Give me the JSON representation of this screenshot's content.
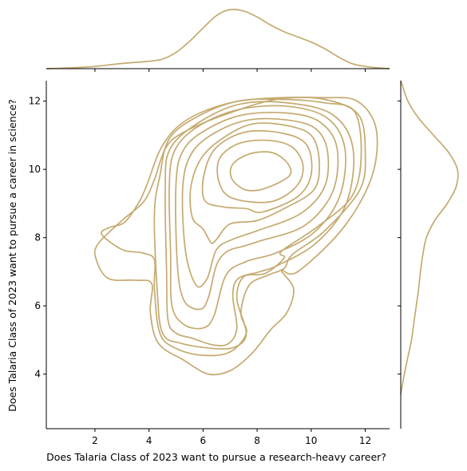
{
  "chart_data": {
    "type": "kde-joint",
    "color": "#c5aa6f",
    "xlabel": "Does Talaria Class of 2023 want to pursue a research-heavy career?",
    "ylabel": "Does Talaria Class of 2023 want to pursue a career in science?",
    "xlim": [
      0.2,
      12.9
    ],
    "ylim": [
      2.4,
      12.6
    ],
    "x_ticks": [
      2,
      4,
      6,
      8,
      10,
      12
    ],
    "y_ticks": [
      4,
      6,
      8,
      10,
      12
    ],
    "x_tick_labels": [
      "2",
      "4",
      "6",
      "8",
      "10",
      "12"
    ],
    "y_tick_labels": [
      "4",
      "6",
      "8",
      "10",
      "12"
    ],
    "contour_levels": 10,
    "contours": [
      [
        [
          8.1,
          9.4
        ],
        [
          8.9,
          9.65
        ],
        [
          9.25,
          9.9
        ],
        [
          9.05,
          10.25
        ],
        [
          8.5,
          10.5
        ],
        [
          7.7,
          10.45
        ],
        [
          7.1,
          10.15
        ],
        [
          7.05,
          9.75
        ],
        [
          7.5,
          9.42
        ]
      ],
      [
        [
          8.5,
          9.05
        ],
        [
          9.45,
          9.5
        ],
        [
          9.7,
          10.1
        ],
        [
          9.3,
          10.65
        ],
        [
          8.4,
          10.85
        ],
        [
          7.3,
          10.75
        ],
        [
          6.6,
          10.3
        ],
        [
          6.6,
          9.6
        ],
        [
          7.1,
          9.15
        ]
      ],
      [
        [
          8.2,
          8.75
        ],
        [
          9.5,
          9.2
        ],
        [
          10.0,
          9.85
        ],
        [
          9.85,
          10.7
        ],
        [
          9.0,
          11.05
        ],
        [
          7.6,
          11.1
        ],
        [
          6.5,
          10.65
        ],
        [
          6.05,
          9.9
        ],
        [
          6.05,
          9.1
        ],
        [
          6.75,
          8.9
        ],
        [
          7.6,
          8.85
        ]
      ],
      [
        [
          8.0,
          8.5
        ],
        [
          9.0,
          8.85
        ],
        [
          10.1,
          9.4
        ],
        [
          10.3,
          10.2
        ],
        [
          10.05,
          10.95
        ],
        [
          9.3,
          11.25
        ],
        [
          8.0,
          11.35
        ],
        [
          7.0,
          11.05
        ],
        [
          6.0,
          10.4
        ],
        [
          5.55,
          9.5
        ],
        [
          5.6,
          8.6
        ],
        [
          6.0,
          8.25
        ],
        [
          6.3,
          7.85
        ],
        [
          6.5,
          7.95
        ],
        [
          7.0,
          8.4
        ]
      ],
      [
        [
          8.0,
          8.2
        ],
        [
          9.6,
          8.7
        ],
        [
          10.5,
          9.5
        ],
        [
          10.6,
          10.55
        ],
        [
          10.15,
          11.2
        ],
        [
          9.1,
          11.45
        ],
        [
          7.7,
          11.45
        ],
        [
          6.5,
          11.1
        ],
        [
          5.6,
          10.5
        ],
        [
          5.25,
          9.5
        ],
        [
          5.35,
          7.6
        ],
        [
          5.75,
          6.6
        ],
        [
          6.15,
          6.8
        ],
        [
          6.5,
          7.65
        ],
        [
          7.1,
          7.95
        ]
      ],
      [
        [
          8.1,
          7.9
        ],
        [
          9.75,
          8.35
        ],
        [
          10.8,
          9.35
        ],
        [
          10.95,
          10.65
        ],
        [
          10.3,
          11.4
        ],
        [
          9.1,
          11.65
        ],
        [
          7.5,
          11.6
        ],
        [
          6.2,
          11.2
        ],
        [
          5.3,
          10.6
        ],
        [
          5.0,
          9.6
        ],
        [
          5.05,
          7.2
        ],
        [
          5.3,
          6.15
        ],
        [
          5.9,
          5.9
        ],
        [
          6.2,
          6.25
        ],
        [
          6.5,
          7.2
        ],
        [
          6.9,
          7.6
        ],
        [
          7.5,
          7.75
        ]
      ],
      [
        [
          8.7,
          7.55
        ],
        [
          10.1,
          8.15
        ],
        [
          11.05,
          9.2
        ],
        [
          11.25,
          10.6
        ],
        [
          10.6,
          11.5
        ],
        [
          9.1,
          11.85
        ],
        [
          7.3,
          11.75
        ],
        [
          5.8,
          11.25
        ],
        [
          4.95,
          10.55
        ],
        [
          4.75,
          9.5
        ],
        [
          4.8,
          7.5
        ],
        [
          4.85,
          6.0
        ],
        [
          5.3,
          5.45
        ],
        [
          6.0,
          5.35
        ],
        [
          6.4,
          5.7
        ],
        [
          6.85,
          6.9
        ],
        [
          7.6,
          7.3
        ]
      ],
      [
        [
          8.8,
          7.2
        ],
        [
          10.2,
          7.85
        ],
        [
          11.3,
          9.0
        ],
        [
          11.55,
          10.6
        ],
        [
          10.8,
          11.6
        ],
        [
          9.1,
          11.95
        ],
        [
          7.3,
          11.9
        ],
        [
          5.7,
          11.3
        ],
        [
          4.75,
          10.55
        ],
        [
          4.6,
          9.4
        ],
        [
          4.65,
          7.0
        ],
        [
          4.7,
          5.6
        ],
        [
          5.0,
          5.2
        ],
        [
          5.6,
          5.05
        ],
        [
          6.4,
          4.85
        ],
        [
          6.95,
          4.9
        ],
        [
          7.25,
          5.35
        ],
        [
          7.1,
          6.3
        ],
        [
          7.3,
          6.8
        ],
        [
          8.1,
          7.0
        ]
      ],
      [
        [
          8.9,
          7.6
        ],
        [
          10.2,
          8.3
        ],
        [
          11.5,
          9.2
        ],
        [
          11.85,
          10.4
        ],
        [
          11.6,
          11.7
        ],
        [
          10.5,
          11.95
        ],
        [
          9.0,
          12.05
        ],
        [
          7.3,
          12.0
        ],
        [
          5.8,
          11.55
        ],
        [
          4.75,
          10.9
        ],
        [
          4.4,
          9.8
        ],
        [
          4.2,
          8.7
        ],
        [
          4.3,
          6.5
        ],
        [
          4.5,
          5.2
        ],
        [
          5.2,
          4.9
        ],
        [
          6.4,
          4.75
        ],
        [
          7.2,
          4.8
        ],
        [
          7.6,
          5.2
        ],
        [
          7.25,
          6.2
        ],
        [
          7.5,
          6.85
        ],
        [
          8.3,
          6.95
        ],
        [
          9.0,
          7.4
        ]
      ],
      [
        [
          9.3,
          7.5
        ],
        [
          10.5,
          8.2
        ],
        [
          11.8,
          9.4
        ],
        [
          12.0,
          10.5
        ],
        [
          11.75,
          11.6
        ],
        [
          10.5,
          12.05
        ],
        [
          8.9,
          12.1
        ],
        [
          7.0,
          11.95
        ],
        [
          5.4,
          11.45
        ],
        [
          4.5,
          10.7
        ],
        [
          3.9,
          9.5
        ],
        [
          3.6,
          9.0
        ],
        [
          3.1,
          8.45
        ],
        [
          2.55,
          8.3
        ],
        [
          2.25,
          8.1
        ],
        [
          3.0,
          7.65
        ],
        [
          3.75,
          7.55
        ],
        [
          4.2,
          7.35
        ],
        [
          4.2,
          6.5
        ],
        [
          4.4,
          5.2
        ],
        [
          5.0,
          4.75
        ],
        [
          6.0,
          4.55
        ],
        [
          7.0,
          4.65
        ],
        [
          7.6,
          5.2
        ],
        [
          7.4,
          5.8
        ],
        [
          7.7,
          6.6
        ],
        [
          8.4,
          6.9
        ],
        [
          9.0,
          7.1
        ]
      ],
      [
        [
          9.5,
          7.0
        ],
        [
          11.2,
          8.3
        ],
        [
          12.25,
          9.8
        ],
        [
          12.4,
          11.2
        ],
        [
          11.7,
          12.0
        ],
        [
          10.5,
          12.1
        ],
        [
          8.7,
          12.05
        ],
        [
          6.8,
          11.6
        ],
        [
          5.2,
          11.05
        ],
        [
          4.6,
          10.6
        ],
        [
          4.2,
          9.7
        ],
        [
          3.8,
          9.05
        ],
        [
          3.0,
          8.5
        ],
        [
          2.1,
          7.8
        ],
        [
          2.05,
          7.35
        ],
        [
          2.5,
          6.8
        ],
        [
          3.5,
          6.75
        ],
        [
          4.1,
          6.65
        ],
        [
          4.05,
          5.8
        ],
        [
          4.35,
          4.9
        ],
        [
          5.3,
          4.4
        ],
        [
          6.2,
          4.0
        ],
        [
          7.0,
          4.1
        ],
        [
          7.8,
          4.6
        ],
        [
          8.5,
          5.3
        ],
        [
          9.1,
          5.8
        ],
        [
          9.35,
          6.5
        ],
        [
          8.9,
          7.05
        ]
      ]
    ],
    "marginal_x": {
      "x": [
        0.2,
        1.0,
        2.0,
        3.0,
        4.0,
        4.5,
        5.0,
        5.5,
        6.0,
        6.5,
        7.0,
        7.5,
        8.0,
        8.5,
        9.0,
        9.5,
        10.0,
        10.5,
        11.0,
        11.5,
        12.0,
        12.5,
        12.9
      ],
      "density": [
        0.0,
        0.01,
        0.03,
        0.07,
        0.1,
        0.13,
        0.22,
        0.37,
        0.55,
        0.72,
        0.8,
        0.78,
        0.7,
        0.59,
        0.5,
        0.43,
        0.36,
        0.27,
        0.16,
        0.07,
        0.03,
        0.01,
        0.0
      ]
    },
    "marginal_y": {
      "y": [
        3.4,
        4.0,
        4.5,
        5.0,
        5.5,
        6.0,
        6.5,
        7.0,
        7.5,
        8.0,
        8.5,
        9.0,
        9.5,
        10.0,
        10.5,
        11.0,
        11.5,
        12.0,
        12.5,
        12.6
      ],
      "density": [
        0.0,
        0.06,
        0.12,
        0.18,
        0.22,
        0.26,
        0.3,
        0.33,
        0.37,
        0.43,
        0.57,
        0.78,
        0.93,
        0.95,
        0.8,
        0.55,
        0.3,
        0.12,
        0.02,
        0.0
      ]
    }
  }
}
